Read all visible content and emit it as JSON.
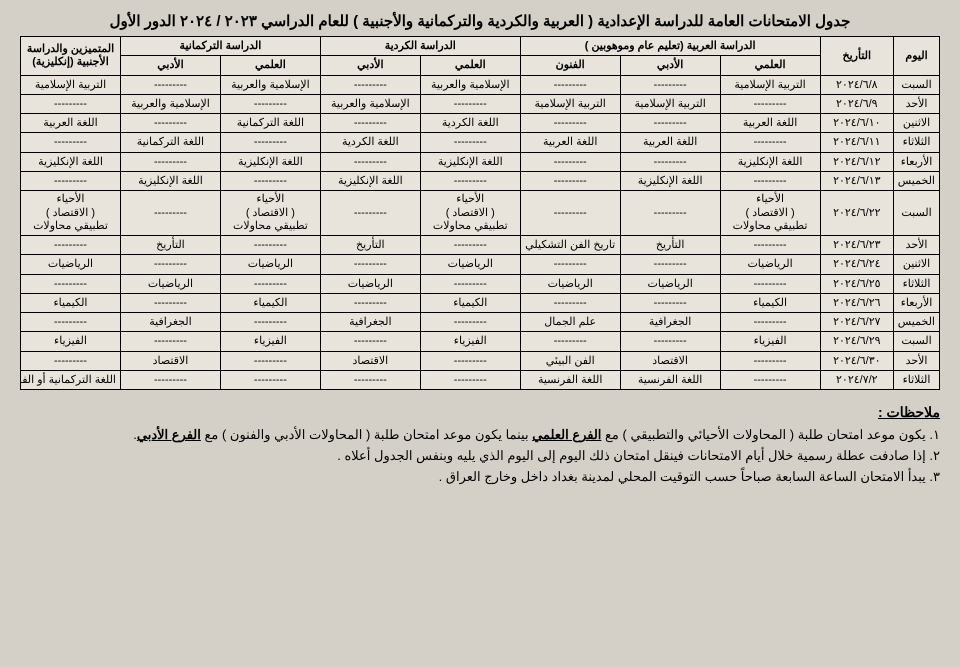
{
  "title": "جدول الامتحانات العامة للدراسة الإعدادية ( العربية والكردية والتركمانية والأجنبية ) للعام الدراسي ٢٠٢٣ / ٢٠٢٤ الدور الأول",
  "headers": {
    "day": "اليوم",
    "date": "التأريخ",
    "arabic": "الدراسة العربية (تعليم عام وموهوبين )",
    "kurdish": "الدراسة الكردية",
    "turkmen": "الدراسة التركمانية",
    "gifted": "المتميزين والدراسة الأجنبية (إنكليزية)",
    "sci": "العلمي",
    "lit": "الأدبي",
    "art": "الفنون"
  },
  "dash": "---------",
  "rows": [
    {
      "day": "السبت",
      "date": "٢٠٢٤/٦/٨",
      "cells": [
        "التربية الإسلامية",
        "---------",
        "---------",
        "الإسلامية والعربية",
        "---------",
        "الإسلامية والعربية",
        "---------",
        "التربية الإسلامية"
      ]
    },
    {
      "day": "الأحد",
      "date": "٢٠٢٤/٦/٩",
      "cells": [
        "---------",
        "التربية الإسلامية",
        "التربية الإسلامية",
        "---------",
        "الإسلامية والعربية",
        "---------",
        "الإسلامية والعربية",
        "---------"
      ]
    },
    {
      "day": "الاثنين",
      "date": "٢٠٢٤/٦/١٠",
      "cells": [
        "اللغة العربية",
        "---------",
        "---------",
        "اللغة الكردية",
        "---------",
        "اللغة التركمانية",
        "---------",
        "اللغة العربية"
      ]
    },
    {
      "day": "الثلاثاء",
      "date": "٢٠٢٤/٦/١١",
      "cells": [
        "---------",
        "اللغة العربية",
        "اللغة العربية",
        "---------",
        "اللغة الكردية",
        "---------",
        "اللغة التركمانية",
        "---------"
      ]
    },
    {
      "day": "الأربعاء",
      "date": "٢٠٢٤/٦/١٢",
      "cells": [
        "اللغة الإنكليزية",
        "---------",
        "---------",
        "اللغة الإنكليزية",
        "---------",
        "اللغة الإنكليزية",
        "---------",
        "اللغة الإنكليزية"
      ]
    },
    {
      "day": "الخميس",
      "date": "٢٠٢٤/٦/١٣",
      "cells": [
        "---------",
        "اللغة الإنكليزية",
        "---------",
        "---------",
        "اللغة الإنكليزية",
        "---------",
        "اللغة الإنكليزية",
        "---------"
      ]
    },
    {
      "day": "السبت",
      "date": "٢٠٢٤/٦/٢٢",
      "cells": [
        "الأحياء\n( الاقتصاد )\nتطبيقي محاولات",
        "---------",
        "---------",
        "الأحياء\n( الاقتصاد )\nتطبيقي محاولات",
        "---------",
        "الأحياء\n( الاقتصاد )\nتطبيقي محاولات",
        "---------",
        "الأحياء\n( الاقتصاد )\nتطبيقي محاولات"
      ]
    },
    {
      "day": "الأحد",
      "date": "٢٠٢٤/٦/٢٣",
      "cells": [
        "---------",
        "التأريخ",
        "تاريخ الفن التشكيلي",
        "---------",
        "التأريخ",
        "---------",
        "التأريخ",
        "---------"
      ]
    },
    {
      "day": "الاثنين",
      "date": "٢٠٢٤/٦/٢٤",
      "cells": [
        "الرياضيات",
        "---------",
        "---------",
        "الرياضيات",
        "---------",
        "الرياضيات",
        "---------",
        "الرياضيات"
      ]
    },
    {
      "day": "الثلاثاء",
      "date": "٢٠٢٤/٦/٢٥",
      "cells": [
        "---------",
        "الرياضيات",
        "الرياضيات",
        "---------",
        "الرياضيات",
        "---------",
        "الرياضيات",
        "---------"
      ]
    },
    {
      "day": "الأربعاء",
      "date": "٢٠٢٤/٦/٢٦",
      "cells": [
        "الكيمياء",
        "---------",
        "---------",
        "الكيمياء",
        "---------",
        "الكيمياء",
        "---------",
        "الكيمياء"
      ]
    },
    {
      "day": "الخميس",
      "date": "٢٠٢٤/٦/٢٧",
      "cells": [
        "---------",
        "الجغرافية",
        "علم الجمال",
        "---------",
        "الجغرافية",
        "---------",
        "الجغرافية",
        "---------"
      ]
    },
    {
      "day": "السبت",
      "date": "٢٠٢٤/٦/٢٩",
      "cells": [
        "الفيزياء",
        "---------",
        "---------",
        "الفيزياء",
        "---------",
        "الفيزياء",
        "---------",
        "الفيزياء"
      ]
    },
    {
      "day": "الأحد",
      "date": "٢٠٢٤/٦/٣٠",
      "cells": [
        "---------",
        "الاقتصاد",
        "الفن البيئي",
        "---------",
        "الاقتصاد",
        "---------",
        "الاقتصاد",
        "---------"
      ]
    },
    {
      "day": "الثلاثاء",
      "date": "٢٠٢٤/٧/٢",
      "cells": [
        "---------",
        "اللغة الفرنسية",
        "اللغة الفرنسية",
        "---------",
        "---------",
        "---------",
        "---------",
        "اللغة التركمانية أو الفرنسية"
      ]
    }
  ],
  "notes_head": "ملاحظات :",
  "notes": [
    "١. يكون موعد امتحان طلبة ( المحاولات الأحيائي والتطبيقي ) مع الفرع العلمي بينما يكون موعد امتحان طلبة ( المحاولات الأدبي والفنون ) مع الفرع الأدبي.",
    "٢. إذا صادفت عطلة رسمية خلال أيام الامتحانات فينقل امتحان ذلك اليوم إلى اليوم الذي يليه وبنفس الجدول أعلاه .",
    "٣. يبدأ الامتحان الساعة السابعة صباحاً حسب التوقيت المحلي لمدينة بغداد داخل وخارج العراق ."
  ]
}
